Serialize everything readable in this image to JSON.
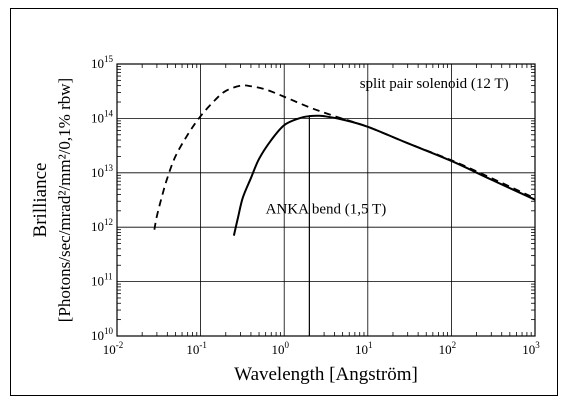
{
  "chart_data": {
    "type": "line",
    "title": "",
    "xlabel": "Wavelength [Angström]",
    "ylabel_line1": "Brilliance",
    "ylabel_line2": "[Photons/sec/mrad²/mm²/0,1% rbw]",
    "xscale": "log",
    "yscale": "log",
    "xlim": [
      0.01,
      1000
    ],
    "ylim": [
      10000000000.0,
      1000000000000000.0
    ],
    "grid": true,
    "x_tick_labels": [
      {
        "value": 0.01,
        "base": "10",
        "exp": "-2"
      },
      {
        "value": 0.1,
        "base": "10",
        "exp": "-1"
      },
      {
        "value": 1,
        "base": "10",
        "exp": "0"
      },
      {
        "value": 10,
        "base": "10",
        "exp": "1"
      },
      {
        "value": 100,
        "base": "10",
        "exp": "2"
      },
      {
        "value": 1000,
        "base": "10",
        "exp": "3"
      }
    ],
    "y_tick_labels": [
      {
        "value": 10000000000.0,
        "base": "10",
        "exp": "10"
      },
      {
        "value": 100000000000.0,
        "base": "10",
        "exp": "11"
      },
      {
        "value": 1000000000000.0,
        "base": "10",
        "exp": "12"
      },
      {
        "value": 10000000000000.0,
        "base": "10",
        "exp": "13"
      },
      {
        "value": 100000000000000.0,
        "base": "10",
        "exp": "14"
      },
      {
        "value": 1000000000000000.0,
        "base": "10",
        "exp": "15"
      }
    ],
    "series": [
      {
        "name": "split pair solenoid (12 T)",
        "style": "dashed",
        "color": "#000000",
        "points": [
          [
            0.028,
            900000000000.0
          ],
          [
            0.03,
            1600000000000.0
          ],
          [
            0.035,
            4000000000000.0
          ],
          [
            0.04,
            8000000000000.0
          ],
          [
            0.05,
            20000000000000.0
          ],
          [
            0.07,
            50000000000000.0
          ],
          [
            0.1,
            110000000000000.0
          ],
          [
            0.15,
            220000000000000.0
          ],
          [
            0.2,
            320000000000000.0
          ],
          [
            0.3,
            400000000000000.0
          ],
          [
            0.4,
            390000000000000.0
          ],
          [
            0.6,
            340000000000000.0
          ],
          [
            1,
            250000000000000.0
          ],
          [
            2,
            160000000000000.0
          ],
          [
            4,
            110000000000000.0
          ],
          [
            10,
            70000000000000.0
          ],
          [
            30,
            35000000000000.0
          ],
          [
            100,
            17000000000000.0
          ],
          [
            300,
            8000000000000.0
          ],
          [
            1000,
            3400000000000.0
          ]
        ]
      },
      {
        "name": "ANKA bend (1,5 T)",
        "style": "solid",
        "color": "#000000",
        "points": [
          [
            0.25,
            700000000000.0
          ],
          [
            0.28,
            1500000000000.0
          ],
          [
            0.32,
            3500000000000.0
          ],
          [
            0.4,
            8000000000000.0
          ],
          [
            0.5,
            18000000000000.0
          ],
          [
            0.7,
            40000000000000.0
          ],
          [
            1,
            75000000000000.0
          ],
          [
            1.5,
            100000000000000.0
          ],
          [
            2,
            110000000000000.0
          ],
          [
            2.5,
            112000000000000.0
          ],
          [
            3,
            110000000000000.0
          ],
          [
            5,
            95000000000000.0
          ],
          [
            10,
            70000000000000.0
          ],
          [
            30,
            35000000000000.0
          ],
          [
            100,
            16500000000000.0
          ],
          [
            300,
            7500000000000.0
          ],
          [
            1000,
            3200000000000.0
          ]
        ]
      }
    ],
    "marker_x": 2,
    "annotations": [
      {
        "text": "split pair solenoid (12 T)",
        "x": 8,
        "y": 360000000000000.0
      },
      {
        "text": "ANKA bend (1,5 T)",
        "x": 0.6,
        "y": 1800000000000.0
      }
    ]
  }
}
